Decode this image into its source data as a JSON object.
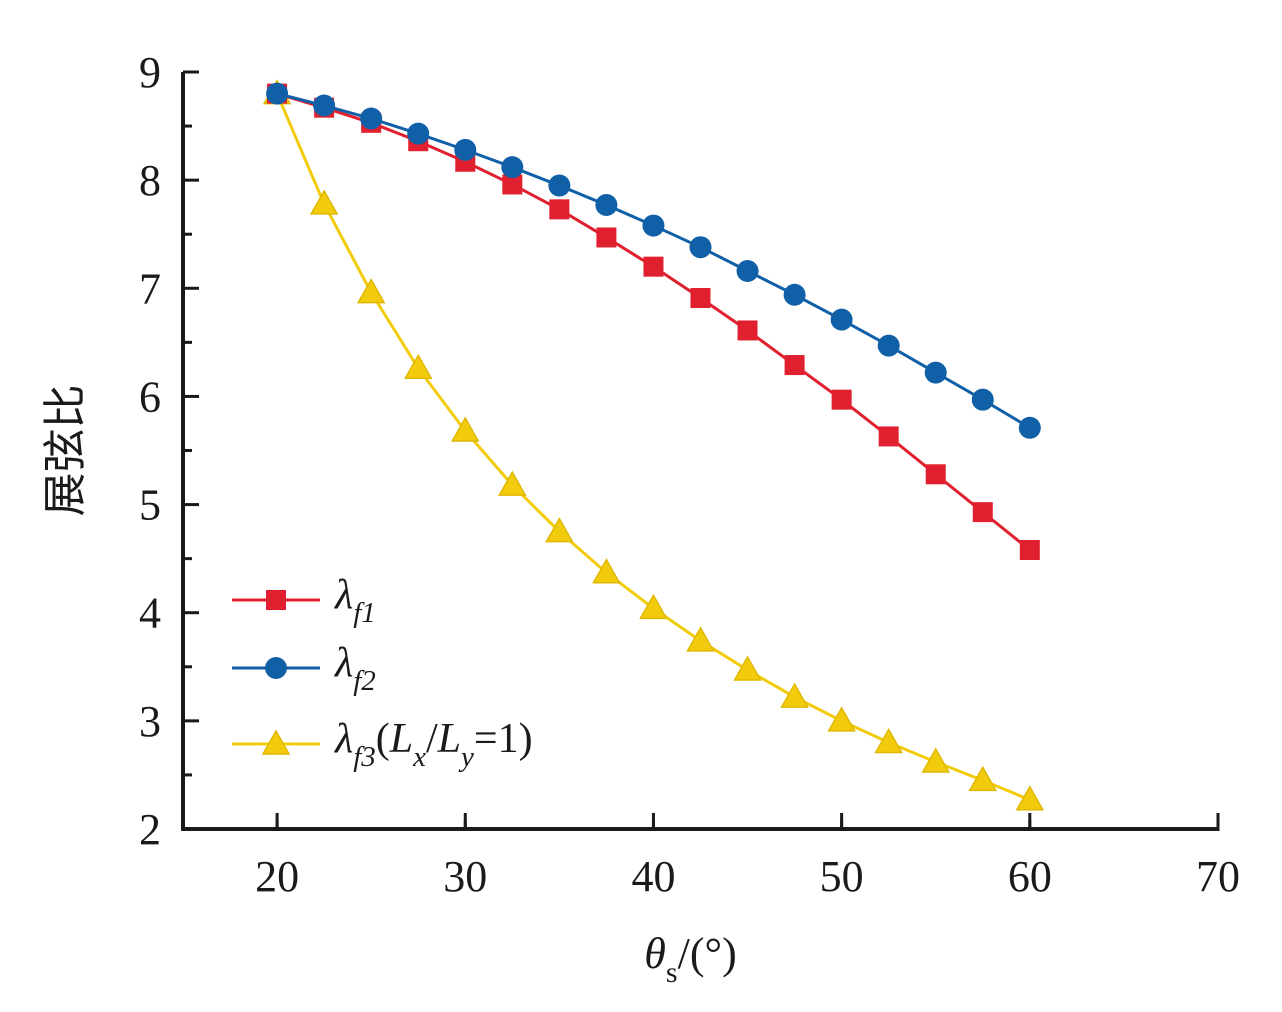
{
  "chart_data": {
    "type": "line",
    "xlabel": "θs/(°)",
    "xlabel_parts": {
      "symbol": "θ",
      "subscript": "s",
      "unit": "/(°)"
    },
    "ylabel": "展弦比",
    "xlim": [
      15,
      70
    ],
    "ylim": [
      2,
      9
    ],
    "xticks": [
      20,
      30,
      40,
      50,
      60,
      70
    ],
    "yticks": [
      2,
      3,
      4,
      5,
      6,
      7,
      8,
      9
    ],
    "x": [
      20,
      22.5,
      25,
      27.5,
      30,
      32.5,
      35,
      37.5,
      40,
      42.5,
      45,
      47.5,
      50,
      52.5,
      55,
      57.5,
      60
    ],
    "legend_position": "bottom-left",
    "series": [
      {
        "name": "λf1",
        "legend": {
          "base": "λ",
          "sub": "f1",
          "suffix": ""
        },
        "color": "#e0202e",
        "marker": "square",
        "values": [
          8.8,
          8.67,
          8.53,
          8.36,
          8.17,
          7.96,
          7.73,
          7.47,
          7.2,
          6.91,
          6.61,
          6.29,
          5.97,
          5.63,
          5.28,
          4.93,
          4.58
        ]
      },
      {
        "name": "λf2",
        "legend": {
          "base": "λ",
          "sub": "f2",
          "suffix": ""
        },
        "color": "#1060a8",
        "marker": "circle",
        "values": [
          8.8,
          8.69,
          8.57,
          8.43,
          8.28,
          8.12,
          7.95,
          7.77,
          7.58,
          7.38,
          7.16,
          6.94,
          6.71,
          6.47,
          6.22,
          5.97,
          5.71
        ]
      },
      {
        "name": "λf3(Lx/Ly=1)",
        "legend": {
          "base": "λ",
          "sub": "f3",
          "suffix": "(Lx/Ly=1)"
        },
        "color": "#f2cc0c",
        "marker": "triangle",
        "values": [
          8.8,
          7.78,
          6.96,
          6.26,
          5.68,
          5.18,
          4.75,
          4.37,
          4.04,
          3.74,
          3.47,
          3.22,
          3.0,
          2.8,
          2.62,
          2.45,
          2.27
        ]
      }
    ]
  }
}
